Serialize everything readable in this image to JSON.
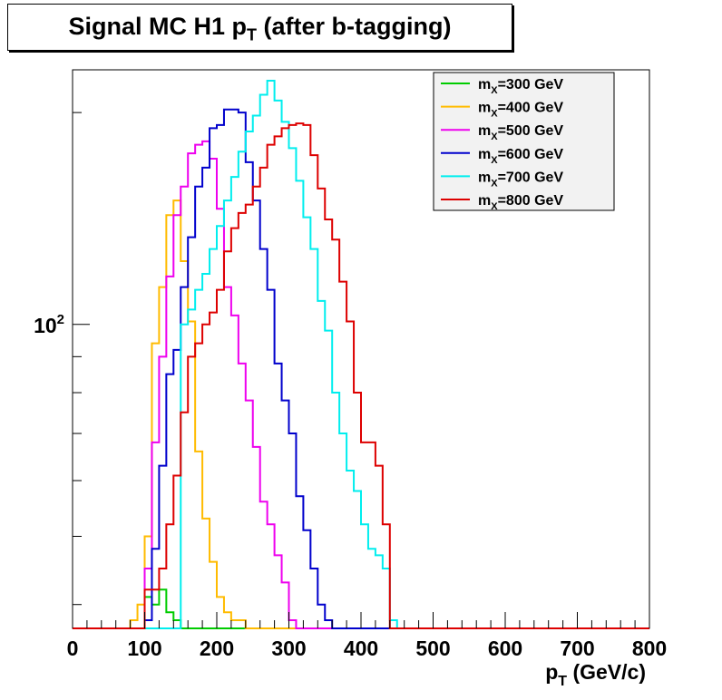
{
  "chart_data": {
    "type": "line",
    "title": {
      "main": "Signal MC H1 p",
      "sub": "T",
      "rest": " (after b-tagging)"
    },
    "xlabel": {
      "main": "p",
      "sub": "T",
      "rest": " (GeV/c)"
    },
    "ylabel": "",
    "xlim": [
      0,
      800
    ],
    "ylim": [
      37,
      230
    ],
    "yscale": "log",
    "x_ticks": [
      0,
      100,
      200,
      300,
      400,
      500,
      600,
      700,
      800
    ],
    "y_tick_label": {
      "base": "10",
      "exp": "2",
      "value": 100
    },
    "grid": false,
    "legend_position": "top-right",
    "bin_width": 10,
    "x_start": 0,
    "series": [
      {
        "name": "m_X=300 GeV",
        "name_main": "m",
        "name_sub": "X",
        "name_rest": "=300 GeV",
        "color": "#00cc00",
        "values": [
          0,
          0,
          0,
          0,
          0,
          0,
          0,
          0,
          0,
          0,
          41,
          40,
          42,
          39,
          38,
          37,
          37,
          37,
          37,
          37,
          37,
          37,
          37,
          37,
          37,
          0,
          0,
          0,
          0,
          0,
          0,
          0,
          0,
          0,
          0,
          0,
          0,
          0,
          0,
          0,
          0,
          0,
          0,
          0,
          0,
          0,
          0,
          0,
          0,
          0,
          0,
          0,
          0,
          0,
          0,
          0,
          0,
          0,
          0,
          0,
          0,
          0,
          0,
          0,
          0,
          0,
          0,
          0,
          0,
          0,
          0,
          0,
          0,
          0,
          0,
          0,
          0,
          0,
          0,
          0
        ]
      },
      {
        "name": "m_X=400 GeV",
        "name_main": "m",
        "name_sub": "X",
        "name_rest": "=400 GeV",
        "color": "#ffbb00",
        "values": [
          0,
          0,
          0,
          0,
          0,
          0,
          0,
          0,
          38,
          40,
          50,
          94,
          113,
          143,
          150,
          123,
          101,
          66,
          53,
          46,
          41,
          39,
          38,
          38,
          37,
          37,
          37,
          37,
          37,
          37,
          37,
          37,
          37,
          37,
          37,
          37,
          37,
          37,
          37,
          37,
          0,
          0,
          0,
          0,
          0,
          0,
          0,
          0,
          0,
          0,
          0,
          0,
          0,
          0,
          0,
          0,
          0,
          0,
          0,
          0,
          0,
          0,
          0,
          0,
          0,
          0,
          0,
          0,
          0,
          0,
          0,
          0,
          0,
          0,
          0,
          0,
          0,
          0,
          0,
          0
        ]
      },
      {
        "name": "m_X=500 GeV",
        "name_main": "m",
        "name_sub": "X",
        "name_rest": "=500 GeV",
        "color": "#ee00ee",
        "values": [
          0,
          0,
          0,
          0,
          0,
          0,
          0,
          0,
          0,
          0,
          45,
          68,
          90,
          117,
          143,
          157,
          175,
          180,
          182,
          172,
          146,
          113,
          103,
          88,
          78,
          67,
          56,
          52,
          47,
          43,
          38,
          37,
          37,
          37,
          37,
          37,
          37,
          37,
          37,
          37,
          0,
          0,
          0,
          0,
          0,
          0,
          0,
          0,
          0,
          0,
          0,
          0,
          0,
          0,
          0,
          0,
          0,
          0,
          0,
          0,
          0,
          0,
          0,
          0,
          0,
          0,
          0,
          0,
          0,
          0,
          0,
          0,
          0,
          0,
          0,
          0,
          0,
          0,
          0,
          0
        ]
      },
      {
        "name": "m_X=600 GeV",
        "name_main": "m",
        "name_sub": "X",
        "name_rest": "=600 GeV",
        "color": "#0000cc",
        "values": [
          0,
          0,
          0,
          0,
          0,
          0,
          0,
          0,
          0,
          0,
          38,
          48,
          63,
          85,
          92,
          113,
          133,
          157,
          167,
          190,
          192,
          202,
          202,
          200,
          170,
          150,
          128,
          112,
          88,
          78,
          70,
          57,
          51,
          45,
          40,
          38,
          37,
          37,
          37,
          37,
          0,
          0,
          0,
          0,
          0,
          0,
          0,
          0,
          0,
          0,
          0,
          0,
          0,
          0,
          0,
          0,
          0,
          0,
          0,
          0,
          0,
          0,
          0,
          0,
          0,
          0,
          0,
          0,
          0,
          0,
          0,
          0,
          0,
          0,
          0,
          0,
          0,
          0,
          0,
          0
        ]
      },
      {
        "name": "m_X=700 GeV",
        "name_main": "m",
        "name_sub": "X",
        "name_rest": "=700 GeV",
        "color": "#00eeee",
        "values": [
          0,
          0,
          0,
          0,
          0,
          0,
          0,
          0,
          0,
          0,
          0,
          0,
          0,
          0,
          0,
          100,
          105,
          112,
          118,
          128,
          138,
          150,
          162,
          176,
          188,
          198,
          212,
          222,
          208,
          194,
          178,
          160,
          142,
          128,
          108,
          98,
          80,
          70,
          62,
          58,
          52,
          48,
          47,
          45,
          38,
          37,
          37,
          0,
          0,
          0,
          0,
          0,
          0,
          0,
          0,
          0,
          0,
          0,
          0,
          0,
          0,
          0,
          0,
          0,
          0,
          0,
          0,
          0,
          0,
          0,
          0,
          0,
          0,
          0,
          0,
          0,
          0,
          0,
          0,
          0
        ]
      },
      {
        "name": "m_X=800 GeV",
        "name_main": "m",
        "name_sub": "X",
        "name_rest": "=800 GeV",
        "color": "#dd0000",
        "values": [
          0,
          0,
          0,
          0,
          0,
          0,
          0,
          0,
          0,
          0,
          42,
          42,
          45,
          52,
          61,
          75,
          90,
          94,
          100,
          104,
          112,
          127,
          137,
          144,
          148,
          157,
          167,
          180,
          185,
          190,
          192,
          193,
          192,
          174,
          156,
          141,
          132,
          115,
          101,
          80,
          68,
          68,
          63,
          52,
          0,
          0,
          0,
          0,
          0,
          0,
          0,
          0,
          0,
          0,
          0,
          0,
          0,
          0,
          0,
          0,
          0,
          0,
          0,
          0,
          0,
          0,
          0,
          0,
          0,
          0,
          0,
          0,
          0,
          0,
          0,
          0,
          0,
          0,
          0,
          0
        ]
      }
    ]
  }
}
